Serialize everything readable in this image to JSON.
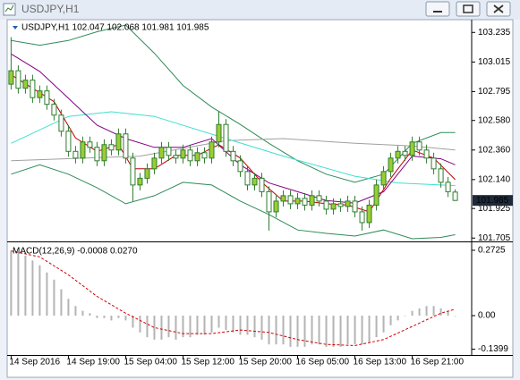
{
  "window": {
    "title": "USDJPY,H1"
  },
  "chart_data": [
    {
      "type": "candlestick",
      "label": "USDJPY,H1  102.047 102.068 101.981 101.985",
      "xlim": [
        -0.3,
        64.3
      ],
      "ylim": [
        101.68,
        103.33
      ],
      "yticks": [
        103.235,
        103.015,
        102.795,
        {
          "value": 102.58,
          "label": "102.580"
        },
        {
          "value": 102.36,
          "label": "102.360"
        },
        {
          "value": 102.14,
          "label": "102.140"
        },
        101.925,
        101.705
      ],
      "last_price": 101.985,
      "bull_color": "#9acd32",
      "bear_color": "#ffffff",
      "wick_color": "#2f7d2f",
      "open": [
        102.85,
        102.95,
        102.82,
        102.88,
        102.75,
        102.8,
        102.7,
        102.62,
        102.5,
        102.35,
        102.3,
        102.42,
        102.38,
        102.28,
        102.4,
        102.36,
        102.48,
        102.3,
        102.1,
        102.15,
        102.22,
        102.3,
        102.38,
        102.32,
        102.3,
        102.36,
        102.28,
        102.34,
        102.3,
        102.42,
        102.55,
        102.35,
        102.28,
        102.2,
        102.1,
        102.15,
        102.05,
        101.9,
        101.98,
        102.02,
        101.96,
        102.0,
        101.95,
        102.02,
        101.98,
        101.92,
        101.96,
        101.94,
        101.98,
        101.9,
        101.82,
        101.95,
        102.1,
        102.2,
        102.3,
        102.35,
        102.32,
        102.42,
        102.36,
        102.3,
        102.22,
        102.12,
        102.047
      ],
      "high": [
        103.2,
        102.99,
        102.92,
        102.92,
        102.84,
        102.84,
        102.74,
        102.66,
        102.54,
        102.39,
        102.46,
        102.46,
        102.42,
        102.44,
        102.44,
        102.52,
        102.52,
        102.34,
        102.19,
        102.26,
        102.34,
        102.42,
        102.42,
        102.36,
        102.4,
        102.4,
        102.38,
        102.38,
        102.46,
        102.65,
        102.59,
        102.39,
        102.32,
        102.24,
        102.19,
        102.19,
        102.09,
        102.02,
        102.06,
        102.06,
        102.04,
        102.04,
        102.06,
        102.06,
        102.02,
        102.0,
        102.0,
        102.02,
        102.02,
        101.94,
        101.99,
        102.14,
        102.24,
        102.34,
        102.39,
        102.39,
        102.46,
        102.46,
        102.4,
        102.34,
        102.26,
        102.16,
        102.068
      ],
      "low": [
        102.81,
        102.78,
        102.78,
        102.71,
        102.71,
        102.66,
        102.58,
        102.46,
        102.31,
        102.26,
        102.26,
        102.34,
        102.24,
        102.24,
        102.32,
        102.32,
        102.26,
        101.98,
        102.06,
        102.11,
        102.18,
        102.26,
        102.28,
        102.26,
        102.26,
        102.24,
        102.24,
        102.26,
        102.26,
        102.38,
        102.31,
        102.24,
        102.16,
        102.06,
        102.06,
        102.01,
        101.76,
        101.86,
        101.94,
        101.92,
        101.92,
        101.91,
        101.91,
        101.94,
        101.88,
        101.88,
        101.9,
        101.9,
        101.86,
        101.76,
        101.78,
        101.91,
        102.06,
        102.16,
        102.26,
        102.28,
        102.28,
        102.32,
        102.26,
        102.18,
        102.08,
        102.01,
        101.981
      ],
      "close": [
        102.95,
        102.82,
        102.88,
        102.75,
        102.8,
        102.7,
        102.62,
        102.5,
        102.35,
        102.3,
        102.42,
        102.38,
        102.28,
        102.4,
        102.36,
        102.48,
        102.3,
        102.1,
        102.15,
        102.22,
        102.3,
        102.38,
        102.32,
        102.3,
        102.36,
        102.28,
        102.34,
        102.3,
        102.42,
        102.55,
        102.35,
        102.28,
        102.2,
        102.1,
        102.15,
        102.05,
        101.9,
        101.98,
        102.02,
        101.96,
        102.0,
        101.95,
        102.02,
        101.98,
        101.92,
        101.96,
        101.94,
        101.98,
        101.9,
        101.82,
        101.95,
        102.1,
        102.2,
        102.3,
        102.35,
        102.32,
        102.42,
        102.36,
        102.3,
        102.22,
        102.12,
        102.05,
        101.985
      ],
      "overlays": [
        {
          "color": "#2e8b57",
          "x": [
            0,
            4,
            8,
            12,
            16,
            20,
            24,
            28,
            32,
            36,
            40,
            44,
            48,
            52,
            56,
            60,
            62
          ],
          "values": [
            103.175,
            103.14,
            103.175,
            103.24,
            103.29,
            103.08,
            102.84,
            102.68,
            102.55,
            102.41,
            102.28,
            102.18,
            102.12,
            102.18,
            102.41,
            102.49,
            102.49
          ]
        },
        {
          "color": "#2e8b57",
          "x": [
            0,
            4,
            8,
            12,
            16,
            20,
            24,
            28,
            32,
            36,
            40,
            44,
            48,
            52,
            56,
            60,
            62
          ],
          "values": [
            102.18,
            102.25,
            102.18,
            102.08,
            101.96,
            102.02,
            102.12,
            102.1,
            101.98,
            101.88,
            101.765,
            101.74,
            101.72,
            101.765,
            101.7,
            101.71,
            101.73
          ]
        },
        {
          "color": "#a0a0a0",
          "x": [
            0,
            18,
            30,
            38,
            48,
            56,
            62
          ],
          "values": [
            102.28,
            102.315,
            102.43,
            102.445,
            102.41,
            102.39,
            102.36
          ]
        },
        {
          "color": "#40e0d0",
          "x": [
            0,
            8,
            14,
            20,
            30,
            38,
            48,
            54,
            62
          ],
          "values": [
            102.41,
            102.61,
            102.645,
            102.61,
            102.445,
            102.315,
            102.165,
            102.115,
            102.095
          ]
        },
        {
          "color": "#800080",
          "x": [
            0,
            4,
            8,
            12,
            16,
            20,
            24,
            28,
            32,
            36,
            40,
            44,
            48,
            52,
            56,
            60,
            62
          ],
          "values": [
            103.075,
            102.945,
            102.745,
            102.545,
            102.445,
            102.38,
            102.38,
            102.445,
            102.25,
            102.115,
            102.05,
            101.985,
            101.965,
            102.05,
            102.315,
            102.295,
            102.25
          ]
        },
        {
          "color": "#c00000",
          "x": [
            0,
            3,
            6,
            9,
            12,
            15,
            17,
            20,
            23,
            26,
            29,
            32,
            35,
            38,
            41,
            44,
            47,
            50,
            53,
            56,
            59,
            62
          ],
          "values": [
            102.92,
            102.82,
            102.72,
            102.45,
            102.35,
            102.4,
            102.22,
            102.22,
            102.32,
            102.32,
            102.4,
            102.3,
            102.12,
            101.98,
            101.98,
            101.96,
            101.95,
            101.9,
            102.15,
            102.36,
            102.3,
            102.14
          ]
        }
      ]
    },
    {
      "type": "bar",
      "label": "MACD(12,26,9) -0.0008 0.0270",
      "xlim": [
        -0.3,
        64.3
      ],
      "ylim": [
        -0.164,
        0.302
      ],
      "yticks": [
        0.2725,
        {
          "value": 0,
          "label": "0.00"
        },
        -0.1399
      ],
      "xticks": [
        {
          "value": 0,
          "label": "14 Sep 2016"
        },
        {
          "value": 8,
          "label": "14 Sep 19:00"
        },
        {
          "value": 16,
          "label": "15 Sep 04:00"
        },
        {
          "value": 24,
          "label": "15 Sep 12:00"
        },
        {
          "value": 32,
          "label": "15 Sep 20:00"
        },
        {
          "value": 40,
          "label": "16 Sep 05:00"
        },
        {
          "value": 48,
          "label": "16 Sep 13:00"
        },
        {
          "value": 56,
          "label": "16 Sep 21:00"
        }
      ],
      "color": "#b4b4b4",
      "values": [
        0.27,
        0.26,
        0.25,
        0.23,
        0.21,
        0.18,
        0.15,
        0.11,
        0.07,
        0.04,
        0.02,
        0.01,
        -0.01,
        -0.01,
        -0.02,
        -0.01,
        -0.02,
        -0.05,
        -0.07,
        -0.09,
        -0.1,
        -0.1,
        -0.09,
        -0.1,
        -0.09,
        -0.09,
        -0.08,
        -0.08,
        -0.07,
        -0.05,
        -0.06,
        -0.07,
        -0.08,
        -0.08,
        -0.09,
        -0.1,
        -0.12,
        -0.12,
        -0.12,
        -0.13,
        -0.13,
        -0.13,
        -0.12,
        -0.12,
        -0.13,
        -0.13,
        -0.13,
        -0.12,
        -0.12,
        -0.12,
        -0.11,
        -0.09,
        -0.07,
        -0.04,
        -0.02,
        0.0,
        0.02,
        0.03,
        0.04,
        0.04,
        0.03,
        0.02,
        -0.0008
      ],
      "signal": {
        "color": "#d00000",
        "x": [
          0,
          4,
          8,
          12,
          16,
          20,
          24,
          28,
          32,
          36,
          40,
          44,
          48,
          52,
          56,
          60,
          62
        ],
        "values": [
          0.27,
          0.245,
          0.17,
          0.08,
          0.01,
          -0.05,
          -0.075,
          -0.075,
          -0.06,
          -0.07,
          -0.1,
          -0.12,
          -0.125,
          -0.1,
          -0.045,
          0.01,
          0.027
        ]
      }
    }
  ]
}
